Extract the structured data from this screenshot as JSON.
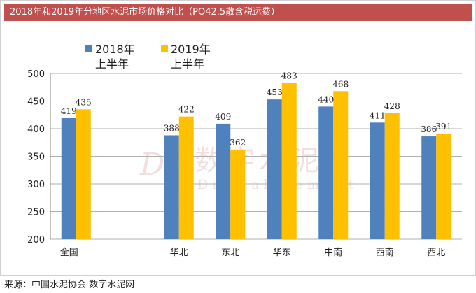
{
  "title": "2018年和2019年分地区水泥市场价格对比（PO42.5散含税运费）",
  "source": "来源：中国水泥协会  数字水泥网",
  "watermark": {
    "logo": "DC",
    "cn": "数字水泥",
    "en": "Digital Cement"
  },
  "colors": {
    "title_bg": "#c0504d",
    "series_2018": "#4f81bd",
    "series_2019": "#ffc000",
    "grid": "#b0b0b0"
  },
  "chart_data": {
    "type": "bar",
    "categories": [
      "全国",
      "",
      "华北",
      "东北",
      "华东",
      "中南",
      "西南",
      "西北"
    ],
    "series": [
      {
        "name": "2018年上半年",
        "values": [
          419,
          null,
          388,
          409,
          453,
          440,
          411,
          386
        ]
      },
      {
        "name": "2019年上半年",
        "values": [
          435,
          null,
          422,
          362,
          483,
          468,
          428,
          391
        ]
      }
    ],
    "ylim": [
      200,
      500
    ],
    "yticks": [
      200,
      250,
      300,
      350,
      400,
      450,
      500
    ],
    "grid": true,
    "legend_position": "top-left",
    "legend_lines": [
      [
        "2018年",
        "上半年"
      ],
      [
        "2019年",
        "上半年"
      ]
    ]
  }
}
